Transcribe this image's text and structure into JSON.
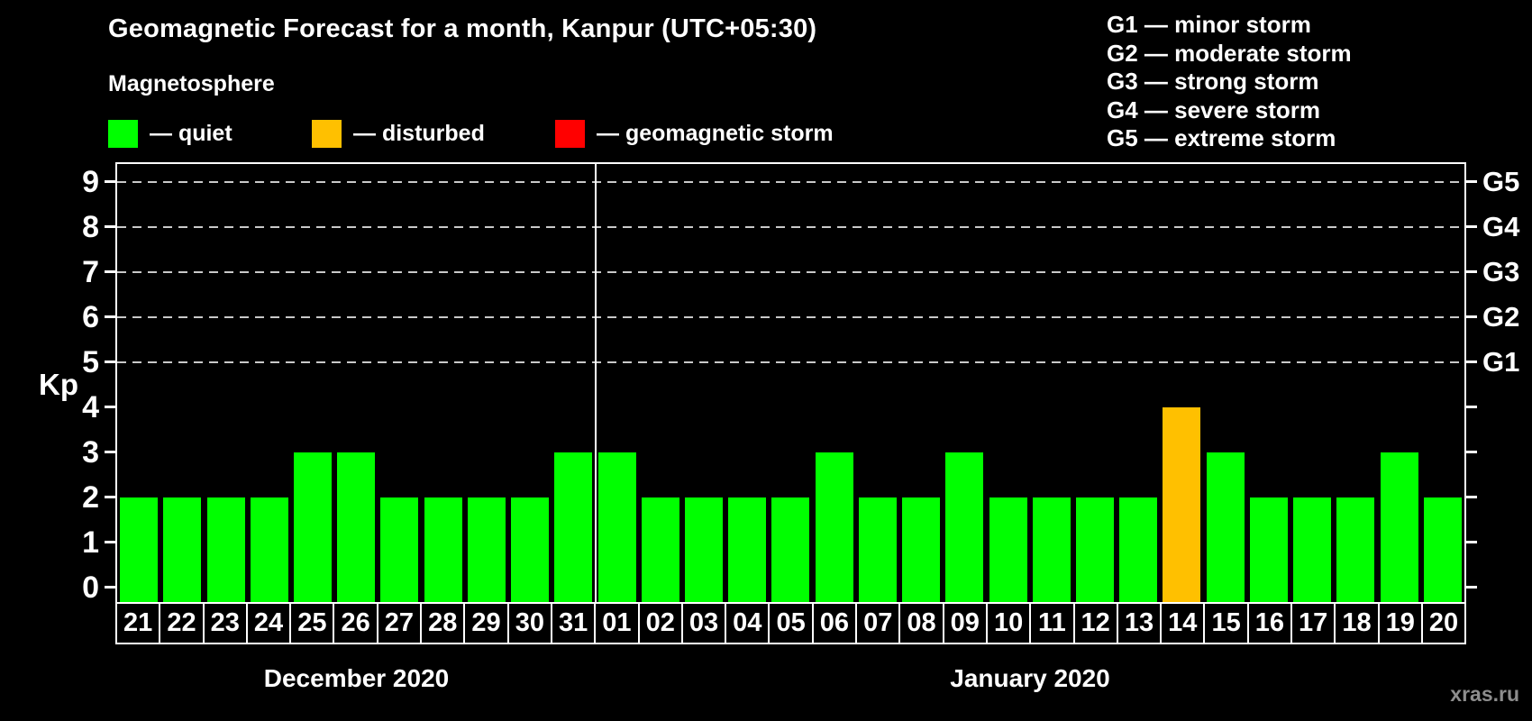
{
  "header": {
    "title": "Geomagnetic Forecast for a month, Kanpur (UTC+05:30)",
    "subtitle": "Magnetosphere",
    "legend": [
      {
        "key": "quiet",
        "label": "— quiet",
        "color": "#00ff00"
      },
      {
        "key": "disturbed",
        "label": "— disturbed",
        "color": "#ffc000"
      },
      {
        "key": "storm",
        "label": "— geomagnetic storm",
        "color": "#ff0000"
      }
    ],
    "g_legend": [
      "G1 — minor storm",
      "G2 — moderate storm",
      "G3 — strong storm",
      "G4 — severe storm",
      "G5 — extreme storm"
    ]
  },
  "chart_data": {
    "type": "bar",
    "title": "Geomagnetic Forecast for a month, Kanpur (UTC+05:30)",
    "ylabel": "Kp",
    "ylim": [
      0,
      9
    ],
    "yticks": [
      0,
      1,
      2,
      3,
      4,
      5,
      6,
      7,
      8,
      9
    ],
    "gridlines_at": [
      5,
      6,
      7,
      8,
      9
    ],
    "grid": "dashed horizontal lines only at Kp 5-9",
    "right_axis": {
      "labels": [
        "G1",
        "G2",
        "G3",
        "G4",
        "G5"
      ],
      "at_kp": [
        5,
        6,
        7,
        8,
        9
      ]
    },
    "bar_colors": {
      "quiet": "#00ff00",
      "disturbed": "#ffc000",
      "storm": "#ff0000"
    },
    "months": [
      {
        "label": "December 2020",
        "days": [
          {
            "day": "21",
            "kp": 2,
            "state": "quiet"
          },
          {
            "day": "22",
            "kp": 2,
            "state": "quiet"
          },
          {
            "day": "23",
            "kp": 2,
            "state": "quiet"
          },
          {
            "day": "24",
            "kp": 2,
            "state": "quiet"
          },
          {
            "day": "25",
            "kp": 3,
            "state": "quiet"
          },
          {
            "day": "26",
            "kp": 3,
            "state": "quiet"
          },
          {
            "day": "27",
            "kp": 2,
            "state": "quiet"
          },
          {
            "day": "28",
            "kp": 2,
            "state": "quiet"
          },
          {
            "day": "29",
            "kp": 2,
            "state": "quiet"
          },
          {
            "day": "30",
            "kp": 2,
            "state": "quiet"
          },
          {
            "day": "31",
            "kp": 3,
            "state": "quiet"
          }
        ]
      },
      {
        "label": "January 2020",
        "days": [
          {
            "day": "01",
            "kp": 3,
            "state": "quiet"
          },
          {
            "day": "02",
            "kp": 2,
            "state": "quiet"
          },
          {
            "day": "03",
            "kp": 2,
            "state": "quiet"
          },
          {
            "day": "04",
            "kp": 2,
            "state": "quiet"
          },
          {
            "day": "05",
            "kp": 2,
            "state": "quiet"
          },
          {
            "day": "06",
            "kp": 3,
            "state": "quiet"
          },
          {
            "day": "07",
            "kp": 2,
            "state": "quiet"
          },
          {
            "day": "08",
            "kp": 2,
            "state": "quiet"
          },
          {
            "day": "09",
            "kp": 3,
            "state": "quiet"
          },
          {
            "day": "10",
            "kp": 2,
            "state": "quiet"
          },
          {
            "day": "11",
            "kp": 2,
            "state": "quiet"
          },
          {
            "day": "12",
            "kp": 2,
            "state": "quiet"
          },
          {
            "day": "13",
            "kp": 2,
            "state": "quiet"
          },
          {
            "day": "14",
            "kp": 4,
            "state": "disturbed"
          },
          {
            "day": "15",
            "kp": 3,
            "state": "quiet"
          },
          {
            "day": "16",
            "kp": 2,
            "state": "quiet"
          },
          {
            "day": "17",
            "kp": 2,
            "state": "quiet"
          },
          {
            "day": "18",
            "kp": 2,
            "state": "quiet"
          },
          {
            "day": "19",
            "kp": 3,
            "state": "quiet"
          },
          {
            "day": "20",
            "kp": 2,
            "state": "quiet"
          }
        ]
      }
    ]
  },
  "footer": {
    "watermark": "xras.ru"
  }
}
